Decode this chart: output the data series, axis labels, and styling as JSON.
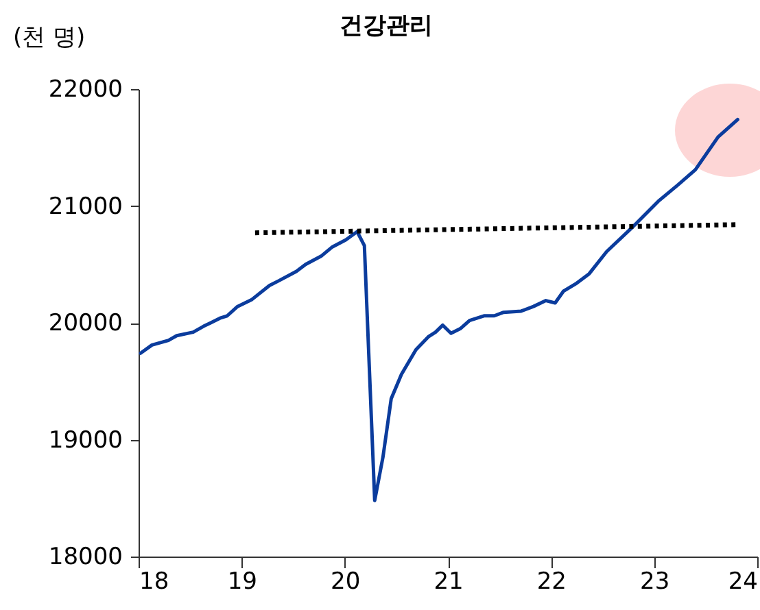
{
  "chart_data": {
    "type": "line",
    "title": "건강관리",
    "ylabel": "(천 명)",
    "xlim": [
      18,
      24
    ],
    "xticks": [
      18,
      19,
      20,
      21,
      22,
      23,
      24
    ],
    "ylim": [
      18000,
      22000
    ],
    "yticks": [
      18000,
      19000,
      20000,
      21000,
      22000
    ],
    "grid": false,
    "series": [
      {
        "color": "#0b3c9d",
        "line_style": "solid",
        "x": [
          18.02,
          18.13,
          18.29,
          18.37,
          18.53,
          18.63,
          18.7,
          18.79,
          18.86,
          18.96,
          19.1,
          19.27,
          19.36,
          19.53,
          19.62,
          19.77,
          19.88,
          20.01,
          20.12,
          20.19,
          20.29,
          20.37,
          20.45,
          20.55,
          20.69,
          20.81,
          20.88,
          20.95,
          21.03,
          21.12,
          21.21,
          21.35,
          21.45,
          21.54,
          21.71,
          21.83,
          21.95,
          22.04,
          22.12,
          22.25,
          22.37,
          22.54,
          22.78,
          23.04,
          23.23,
          23.4,
          23.62,
          23.81
        ],
        "values": [
          19740,
          19810,
          19850,
          19890,
          19920,
          19970,
          20000,
          20040,
          20060,
          20140,
          20200,
          20320,
          20360,
          20440,
          20500,
          20570,
          20650,
          20710,
          20780,
          20660,
          18480,
          18850,
          19350,
          19560,
          19770,
          19880,
          19920,
          19980,
          19910,
          19950,
          20020,
          20060,
          20060,
          20090,
          20100,
          20140,
          20190,
          20170,
          20270,
          20340,
          20420,
          20610,
          20810,
          21040,
          21180,
          21310,
          21590,
          21740
        ]
      },
      {
        "type": "line",
        "color": "#000000",
        "line_style": "dotted",
        "x": [
          19.13,
          23.8
        ],
        "values": [
          20770,
          20840
        ]
      }
    ]
  }
}
